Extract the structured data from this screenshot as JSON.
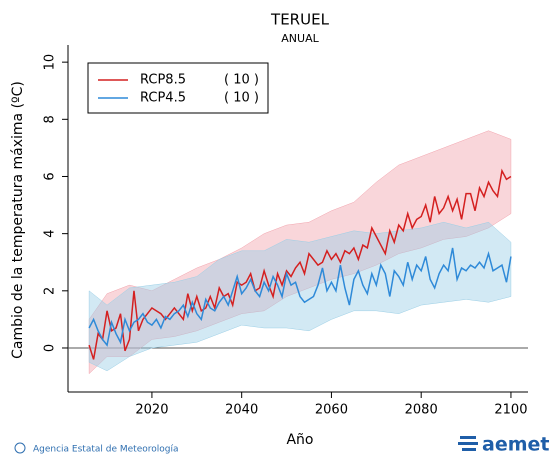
{
  "chart_data": {
    "type": "line",
    "title": "TERUEL",
    "subtitle": "ANUAL",
    "ylabel": "Cambio de la temperatura máxima (ºC)",
    "xlabel": "Año",
    "xlim": [
      2001.3,
      2103.8
    ],
    "xticks": [
      2020,
      2040,
      2060,
      2080,
      2100
    ],
    "ylim": [
      -1.54,
      10.6
    ],
    "yticks": [
      0,
      2,
      4,
      6,
      8,
      10
    ],
    "legend": "upper left",
    "x": [
      2006,
      2007,
      2008,
      2009,
      2010,
      2011,
      2012,
      2013,
      2014,
      2015,
      2016,
      2017,
      2018,
      2019,
      2020,
      2021,
      2022,
      2023,
      2024,
      2025,
      2026,
      2027,
      2028,
      2029,
      2030,
      2031,
      2032,
      2033,
      2034,
      2035,
      2036,
      2037,
      2038,
      2039,
      2040,
      2041,
      2042,
      2043,
      2044,
      2045,
      2046,
      2047,
      2048,
      2049,
      2050,
      2051,
      2052,
      2053,
      2054,
      2055,
      2056,
      2057,
      2058,
      2059,
      2060,
      2061,
      2062,
      2063,
      2064,
      2065,
      2066,
      2067,
      2068,
      2069,
      2070,
      2071,
      2072,
      2073,
      2074,
      2075,
      2076,
      2077,
      2078,
      2079,
      2080,
      2081,
      2082,
      2083,
      2084,
      2085,
      2086,
      2087,
      2088,
      2089,
      2090,
      2091,
      2092,
      2093,
      2094,
      2095,
      2096,
      2097,
      2098,
      2099,
      2100
    ],
    "band_x": [
      2006,
      2010,
      2015,
      2020,
      2025,
      2030,
      2035,
      2040,
      2045,
      2050,
      2055,
      2060,
      2065,
      2070,
      2075,
      2080,
      2085,
      2090,
      2095,
      2100
    ],
    "series": [
      {
        "name": "RCP8.5",
        "count_label": "( 10 )",
        "color": "#d42020",
        "band_color": "#f2a3ad",
        "values": [
          0.1,
          -0.4,
          0.5,
          0.3,
          1.3,
          0.6,
          0.7,
          1.2,
          -0.1,
          0.3,
          2.0,
          0.6,
          1.0,
          1.2,
          1.4,
          1.3,
          1.2,
          1.0,
          1.2,
          1.4,
          1.2,
          1.0,
          1.9,
          1.3,
          1.8,
          1.3,
          1.4,
          1.8,
          1.4,
          2.1,
          1.8,
          1.9,
          1.5,
          2.3,
          2.2,
          2.3,
          2.6,
          2.0,
          2.1,
          2.7,
          2.2,
          1.8,
          2.6,
          2.2,
          2.7,
          2.5,
          2.8,
          3.0,
          2.6,
          3.3,
          3.1,
          2.9,
          3.0,
          3.4,
          3.1,
          3.3,
          3.0,
          3.4,
          3.3,
          3.5,
          3.1,
          3.6,
          3.5,
          4.2,
          3.9,
          3.6,
          3.3,
          4.1,
          3.7,
          4.3,
          4.1,
          4.7,
          4.2,
          4.5,
          4.6,
          5.0,
          4.4,
          5.3,
          4.7,
          4.9,
          5.3,
          4.8,
          5.2,
          4.5,
          5.4,
          5.4,
          4.8,
          5.6,
          5.3,
          5.8,
          5.5,
          5.3,
          6.2,
          5.9,
          6.0
        ],
        "lower": [
          -0.9,
          -0.3,
          -0.3,
          0.3,
          0.4,
          0.6,
          0.9,
          1.2,
          1.3,
          1.8,
          2.1,
          2.4,
          2.6,
          2.9,
          3.3,
          3.5,
          3.8,
          3.9,
          4.2,
          4.7
        ],
        "upper": [
          1.0,
          1.9,
          2.2,
          2.0,
          2.4,
          2.8,
          3.1,
          3.5,
          4.0,
          4.3,
          4.4,
          4.8,
          5.1,
          5.8,
          6.4,
          6.7,
          7.0,
          7.3,
          7.6,
          7.3
        ]
      },
      {
        "name": "RCP4.5",
        "count_label": "( 10 )",
        "color": "#2f8ad8",
        "band_color": "#9ccfe6",
        "values": [
          0.7,
          1.0,
          0.6,
          0.3,
          0.1,
          0.9,
          0.5,
          0.2,
          1.0,
          0.6,
          0.9,
          1.0,
          1.2,
          0.9,
          0.8,
          1.0,
          0.7,
          1.1,
          1.0,
          1.2,
          1.3,
          1.5,
          1.1,
          1.6,
          1.2,
          1.0,
          1.7,
          1.4,
          1.3,
          1.6,
          1.8,
          1.5,
          2.0,
          2.5,
          1.9,
          2.1,
          2.4,
          2.0,
          1.8,
          2.3,
          2.0,
          2.5,
          2.2,
          1.8,
          2.6,
          2.2,
          2.3,
          1.8,
          1.6,
          1.7,
          1.8,
          2.2,
          2.8,
          2.0,
          2.3,
          2.0,
          2.9,
          2.1,
          1.5,
          2.4,
          2.7,
          2.2,
          1.9,
          2.6,
          2.2,
          2.9,
          2.6,
          1.8,
          2.7,
          2.5,
          2.2,
          3.0,
          2.4,
          2.9,
          2.7,
          3.2,
          2.4,
          2.1,
          2.6,
          2.9,
          2.7,
          3.5,
          2.4,
          2.8,
          2.7,
          2.9,
          2.8,
          3.0,
          2.8,
          3.3,
          2.7,
          2.8,
          2.9,
          2.3,
          3.2
        ],
        "lower": [
          -0.5,
          -0.8,
          -0.3,
          0.0,
          0.1,
          0.2,
          0.5,
          0.8,
          0.7,
          0.7,
          0.6,
          1.0,
          1.3,
          1.3,
          1.2,
          1.5,
          1.6,
          1.7,
          1.6,
          1.8
        ],
        "upper": [
          2.0,
          1.5,
          2.1,
          2.2,
          2.3,
          2.5,
          3.1,
          3.4,
          3.4,
          3.8,
          3.7,
          3.9,
          4.1,
          4.0,
          4.1,
          4.2,
          4.4,
          4.2,
          4.4,
          3.7
        ]
      }
    ]
  },
  "source": "Agencia Estatal de Meteorología",
  "logo": "aemet"
}
